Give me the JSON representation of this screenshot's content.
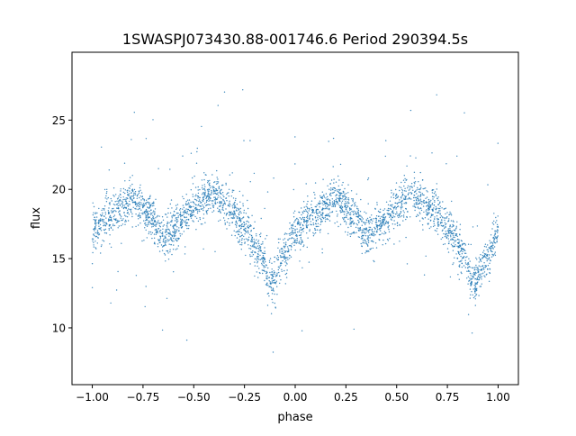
{
  "chart_data": {
    "type": "scatter",
    "title": "1SWASPJ073430.88-001746.6 Period 290394.5s",
    "xlabel": "phase",
    "ylabel": "flux",
    "xlim": [
      -1.1,
      1.1
    ],
    "ylim": [
      5.9,
      29.9
    ],
    "xticks": [
      -1.0,
      -0.75,
      -0.5,
      -0.25,
      0.0,
      0.25,
      0.5,
      0.75,
      1.0
    ],
    "xtick_labels": [
      "−1.00",
      "−0.75",
      "−0.50",
      "−0.25",
      "0.00",
      "0.25",
      "0.50",
      "0.75",
      "1.00"
    ],
    "yticks": [
      10,
      15,
      20,
      25
    ],
    "ytick_labels": [
      "10",
      "15",
      "20",
      "25"
    ],
    "grid": false,
    "point_color": "#1f77b4",
    "folded_trend": {
      "note_period_in_phase": 1.0,
      "phase": [
        -1.0,
        -0.9,
        -0.8,
        -0.72,
        -0.65,
        -0.57,
        -0.5,
        -0.42,
        -0.33,
        -0.25,
        -0.18,
        -0.12,
        -0.05,
        0.0
      ],
      "flux": [
        17.0,
        18.3,
        19.3,
        18.2,
        16.6,
        17.5,
        18.8,
        19.6,
        18.8,
        17.3,
        15.5,
        13.3,
        15.2,
        17.0
      ]
    },
    "scatter_sigma": 0.75,
    "outlier_fraction": 0.04,
    "n_points": 3500
  }
}
